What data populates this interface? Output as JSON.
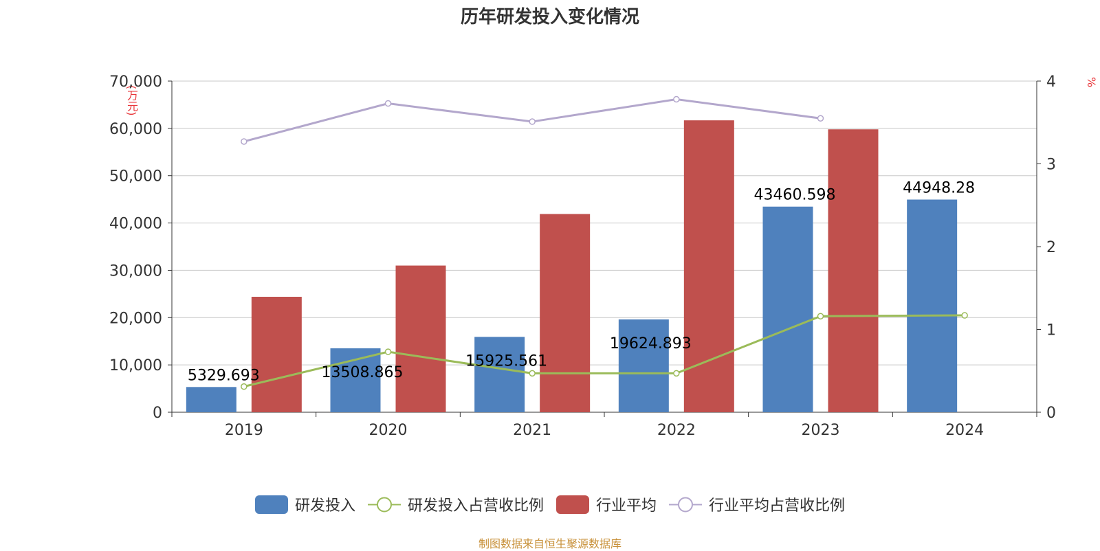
{
  "chart_data": {
    "type": "bar",
    "title": "历年研发投入变化情况",
    "categories": [
      "2019",
      "2020",
      "2021",
      "2022",
      "2023",
      "2024"
    ],
    "y_left": {
      "unit": "(万元)",
      "ylim": [
        0,
        70000
      ],
      "ticks": [
        0,
        10000,
        20000,
        30000,
        40000,
        50000,
        60000,
        70000
      ],
      "tick_labels": [
        "0",
        "10,000",
        "20,000",
        "30,000",
        "40,000",
        "50,000",
        "60,000",
        "70,000"
      ]
    },
    "y_right": {
      "unit": "%",
      "ylim": [
        0,
        4
      ],
      "ticks": [
        0,
        1,
        2,
        3,
        4
      ],
      "tick_labels": [
        "0",
        "1",
        "2",
        "3",
        "4"
      ]
    },
    "series": [
      {
        "name": "研发投入",
        "type": "bar",
        "axis": "left",
        "color": "#4f81bd",
        "values": [
          5329.693,
          13508.865,
          15925.561,
          19624.893,
          43460.598,
          44948.28
        ],
        "labels": [
          "5329.693",
          "13508.865",
          "15925.561",
          "19624.893",
          "43460.598",
          "44948.28"
        ]
      },
      {
        "name": "研发投入占营收比例",
        "type": "line",
        "axis": "right",
        "color": "#9bbb59",
        "values": [
          0.31,
          0.73,
          0.47,
          0.47,
          1.16,
          1.17
        ]
      },
      {
        "name": "行业平均",
        "type": "bar",
        "axis": "left",
        "color": "#c0504d",
        "values": [
          24400,
          31000,
          41900,
          61700,
          59800,
          null
        ]
      },
      {
        "name": "行业平均占营收比例",
        "type": "line",
        "axis": "right",
        "color": "#b3a7cc",
        "values": [
          3.27,
          3.73,
          3.51,
          3.78,
          3.55,
          null
        ]
      }
    ],
    "grid": true,
    "legend_position": "bottom"
  },
  "source_text": "制图数据来自恒生聚源数据库"
}
